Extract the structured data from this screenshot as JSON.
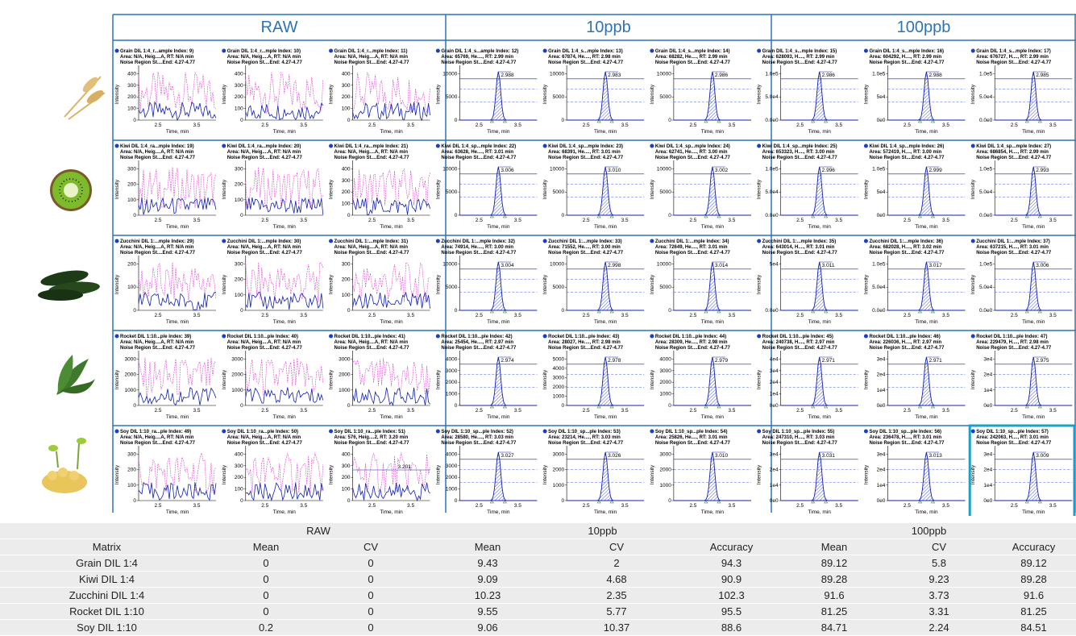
{
  "figure": {
    "groups": [
      "RAW",
      "10ppb",
      "100ppb"
    ],
    "x_label": "Time, min",
    "y_label": "Intensity",
    "xticks": [
      "2.5",
      "3.5"
    ],
    "rows": [
      [
        {
          "lines": [
            "Grain DIL 1:4_r...ample Index: 9)",
            "Area: N/A, Heig....A, RT: N/A min",
            "Noise Region St....End: 4.27-4.77"
          ],
          "yticks": [
            "0",
            "100",
            "200",
            "300",
            "400"
          ]
        },
        {
          "lines": [
            "Grain DIL 1:4_r...mple Index: 10)",
            "Area: N/A, Heig....A, RT: N/A min",
            "Noise Region St....End: 4.27-4.77"
          ],
          "yticks": [
            "0",
            "100",
            "200",
            "300",
            "400"
          ]
        },
        {
          "lines": [
            "Grain DIL 1:4_r...mple Index: 11)",
            "Area: N/A, Heig....A, RT: N/A min",
            "Noise Region St....End: 4.27-4.77"
          ],
          "yticks": [
            "0",
            "100",
            "200",
            "300",
            "400"
          ]
        },
        {
          "lines": [
            "Grain DIL 1:4_s...ample Index: 12)",
            "Area: 65769, He...., RT: 2.99 min",
            "Noise Region St....End: 4.27-4.77"
          ],
          "yticks": [
            "0",
            "5000",
            "10000"
          ],
          "peak": "2.988"
        },
        {
          "lines": [
            "Grain DIL 1:4_s...mple Index: 13)",
            "Area: 67874, He...., RT: 2.98 min",
            "Noise Region St....End: 4.27-4.77"
          ],
          "yticks": [
            "0",
            "5000",
            "10000"
          ],
          "peak": "2.983"
        },
        {
          "lines": [
            "Grain DIL 1:4_s...mple Index: 14)",
            "Area: 68282, He...., RT: 2.99 min",
            "Noise Region St....End: 4.27-4.77"
          ],
          "yticks": [
            "0",
            "5000",
            "10000"
          ],
          "peak": "2.986"
        },
        {
          "lines": [
            "Grain DIL 1:4_s...mple Index: 15)",
            "Area: 628093, H...., RT: 2.99 min",
            "Noise Region St....End: 4.27-4.77"
          ],
          "yticks": [
            "0.0e0",
            "5.0e4",
            "1.0e5"
          ],
          "peak": "2.986"
        },
        {
          "lines": [
            "Grain DIL 1:4_s...mple Index: 16)",
            "Area: 604292, H...., RT: 2.99 min",
            "Noise Region St....End: 4.27-4.77"
          ],
          "yticks": [
            "0e0",
            "5e4",
            "1.0e5"
          ],
          "peak": "2.988"
        },
        {
          "lines": [
            "Grain DIL 1:4_s...mple Index: 17)",
            "Area: 676727, H...., RT: 2.99 min",
            "Noise Region St....End: 4.27-4.77"
          ],
          "yticks": [
            "0.0e0",
            "5.0e4",
            "1.0e5"
          ],
          "peak": "2.985"
        }
      ],
      [
        {
          "lines": [
            "Kiwi DIL 1:4_ra...mple Index: 19)",
            "Area: N/A, Heig....A, RT: N/A min",
            "Noise Region St....End: 4.27-4.77"
          ],
          "yticks": [
            "0",
            "100",
            "200",
            "300"
          ]
        },
        {
          "lines": [
            "Kiwi DIL 1:4_ra...mple Index: 20)",
            "Area: N/A, Heig....A, RT: N/A min",
            "Noise Region St....End: 4.27-4.77"
          ],
          "yticks": [
            "0",
            "100",
            "200",
            "300"
          ]
        },
        {
          "lines": [
            "Kiwi DIL 1:4_ra...mple Index: 21)",
            "Area: N/A, Heig....A, RT: N/A min",
            "Noise Region St....End: 4.27-4.77"
          ],
          "yticks": [
            "0",
            "100",
            "200",
            "300",
            "400"
          ]
        },
        {
          "lines": [
            "Kiwi DIL 1:4_sp...mple Index: 22)",
            "Area: 63628, He...., RT: 3.01 min",
            "Noise Region St....End: 4.27-4.77"
          ],
          "yticks": [
            "0",
            "5000",
            "10000"
          ],
          "peak": "3.006"
        },
        {
          "lines": [
            "Kiwi DIL 1:4_sp...mple Index: 23)",
            "Area: 68391, He...., RT: 3.01 min",
            "Noise Region St....End: 4.27-4.77"
          ],
          "yticks": [
            "0",
            "5000",
            "10000"
          ],
          "peak": "3.010"
        },
        {
          "lines": [
            "Kiwi DIL 1:4_sp...mple Index: 24)",
            "Area: 62741, He...., RT: 3.00 min",
            "Noise Region St....End: 4.27-4.77"
          ],
          "yticks": [
            "0",
            "5000",
            "10000"
          ],
          "peak": "3.002"
        },
        {
          "lines": [
            "Kiwi DIL 1:4_sp...mple Index: 25)",
            "Area: 653323, H...., RT: 3.00 min",
            "Noise Region St....End: 4.27-4.77"
          ],
          "yticks": [
            "0.0e0",
            "5.0e4",
            "1.0e5"
          ],
          "peak": "2.996"
        },
        {
          "lines": [
            "Kiwi DIL 1:4_sp...mple Index: 26)",
            "Area: 572419, H...., RT: 3.00 min",
            "Noise Region St....End: 4.27-4.77"
          ],
          "yticks": [
            "0e0",
            "5e4",
            "1.0e5"
          ],
          "peak": "2.999"
        },
        {
          "lines": [
            "Kiwi DIL 1:4_sp...mple Index: 27)",
            "Area: 686854, H...., RT: 2.99 min",
            "Noise Region St....End: 4.27-4.77"
          ],
          "yticks": [
            "0.0e0",
            "5.0e4",
            "1.0e5"
          ],
          "peak": "2.993"
        }
      ],
      [
        {
          "lines": [
            "Zucchini DIL 1:...mple Index: 29)",
            "Area: N/A, Heig....A, RT: N/A min",
            "Noise Region St....End: 4.27-4.77"
          ],
          "yticks": [
            "0",
            "100",
            "200"
          ]
        },
        {
          "lines": [
            "Zucchini DIL 1:...mple Index: 30)",
            "Area: N/A, Heig....A, RT: N/A min",
            "Noise Region St....End: 4.27-4.77"
          ],
          "yticks": [
            "0",
            "100",
            "200",
            "300"
          ]
        },
        {
          "lines": [
            "Zucchini DIL 1:...mple Index: 31)",
            "Area: N/A, Heig....A, RT: N/A min",
            "Noise Region St....End: 4.27-4.77"
          ],
          "yticks": [
            "0",
            "100",
            "200",
            "300"
          ]
        },
        {
          "lines": [
            "Zucchini DIL 1:...mple Index: 32)",
            "Area: 74914, He...., RT: 3.00 min",
            "Noise Region St....End: 4.27-4.77"
          ],
          "yticks": [
            "0",
            "5000",
            "10000"
          ],
          "peak": "3.004"
        },
        {
          "lines": [
            "Zucchini DIL 1:...mple Index: 33)",
            "Area: 71552, He...., RT: 3.00 min",
            "Noise Region St....End: 4.27-4.77"
          ],
          "yticks": [
            "0",
            "5000",
            "10000"
          ],
          "peak": "2.998"
        },
        {
          "lines": [
            "Zucchini DIL 1:...mple Index: 34)",
            "Area: 72649, He...., RT: 3.01 min",
            "Noise Region St....End: 4.27-4.77"
          ],
          "yticks": [
            "0",
            "5000",
            "10000"
          ],
          "peak": "3.014"
        },
        {
          "lines": [
            "Zucchini DIL 1:...mple Index: 35)",
            "Area: 643014, H...., RT: 3.01 min",
            "Noise Region St....End: 4.27-4.77"
          ],
          "yticks": [
            "0.0e0",
            "5e4"
          ],
          "peak": "3.011"
        },
        {
          "lines": [
            "Zucchini DIL 1:...mple Index: 36)",
            "Area: 682028, H...., RT: 3.02 min",
            "Noise Region St....End: 4.27-4.77"
          ],
          "yticks": [
            "0.0e0",
            "5.0e4",
            "1.0e5"
          ],
          "peak": "3.017"
        },
        {
          "lines": [
            "Zucchini DIL 1:...mple Index: 37)",
            "Area: 637215, H...., RT: 3.01 min",
            "Noise Region St....End: 4.27-4.77"
          ],
          "yticks": [
            "0.0e0",
            "5.0e4",
            "1.0e5"
          ],
          "peak": "3.006"
        }
      ],
      [
        {
          "lines": [
            "Rocket DIL 1:10...ple Index: 39)",
            "Area: N/A, Heig....A, RT: N/A min",
            "Noise Region St....End: 4.27-4.77"
          ],
          "yticks": [
            "0",
            "1000",
            "2000",
            "3000"
          ]
        },
        {
          "lines": [
            "Rocket DIL 1:10...ple Index: 40)",
            "Area: N/A, Heig....A, RT: N/A min",
            "Noise Region St....End: 4.27-4.77"
          ],
          "yticks": [
            "0",
            "1000",
            "2000",
            "3000"
          ]
        },
        {
          "lines": [
            "Rocket DIL 1:10...ple Index: 41)",
            "Area: N/A, Heig....A, RT: N/A min",
            "Noise Region St....End: 4.27-4.77"
          ],
          "yticks": [
            "0",
            "1000",
            "2000",
            "3000"
          ]
        },
        {
          "lines": [
            "Rocket DIL 1:10...ple Index: 42)",
            "Area: 25454, He...., RT: 2.97 min",
            "Noise Region St....End: 4.27-4.77"
          ],
          "yticks": [
            "0",
            "1000",
            "2000",
            "3000",
            "4000"
          ],
          "peak": "2.974"
        },
        {
          "lines": [
            "Rocket DIL 1:10...ple Index: 43)",
            "Area: 28027, He...., RT: 2.98 min",
            "Noise Region St....End: 4.27-4.77"
          ],
          "yticks": [
            "0",
            "1000",
            "2000",
            "3000",
            "4000",
            "5000"
          ],
          "peak": "2.978"
        },
        {
          "lines": [
            "Rocket DIL 1:10...ple Index: 44)",
            "Area: 28309, He...., RT: 2.98 min",
            "Noise Region St....End: 4.27-4.77"
          ],
          "yticks": [
            "0",
            "1000",
            "2000",
            "3000",
            "4000"
          ],
          "peak": "2.979"
        },
        {
          "lines": [
            "Rocket DIL 1:10...ple Index: 45)",
            "Area: 240738, H...., RT: 2.97 min",
            "Noise Region St....End: 4.27-4.77"
          ],
          "yticks": [
            "0e0",
            "1e4",
            "2e4",
            "3e4",
            "4e4"
          ],
          "peak": "2.971"
        },
        {
          "lines": [
            "Rocket DIL 1:10...ple Index: 46)",
            "Area: 226036, H...., RT: 2.97 min",
            "Noise Region St....End: 4.27-4.77"
          ],
          "yticks": [
            "0e0",
            "1e4",
            "2e4",
            "3e4"
          ],
          "peak": "2.971"
        },
        {
          "lines": [
            "Rocket DIL 1:10...ple Index: 47)",
            "Area: 229479, H...., RT: 2.98 min",
            "Noise Region St....End: 4.27-4.77"
          ],
          "yticks": [
            "0e0",
            "1e4",
            "2e4",
            "3e4"
          ],
          "peak": "2.975"
        }
      ],
      [
        {
          "lines": [
            "Soy DIL 1:10_ra...ple Index: 49)",
            "Area: N/A, Heig....A, RT: N/A min",
            "Noise Region St....End: 4.27-4.77"
          ],
          "yticks": [
            "0",
            "100",
            "200",
            "300"
          ]
        },
        {
          "lines": [
            "Soy DIL 1:10_ra...ple Index: 50)",
            "Area: N/A, Heig....A, RT: N/A min",
            "Noise Region St....End: 4.27-4.77"
          ],
          "yticks": [
            "0",
            "100",
            "200",
            "300",
            "400"
          ]
        },
        {
          "lines": [
            "Soy DIL 1:10_ra...ple Index: 51)",
            "Area: 576, Heig....2, RT: 3.20 min",
            "Noise Region St....End: 4.27-4.77"
          ],
          "yticks": [
            "0",
            "100",
            "200",
            "300",
            "400"
          ],
          "peak": "3.201"
        },
        {
          "lines": [
            "Soy DIL 1:10_sp...ple Index: 52)",
            "Area: 28580, He...., RT: 3.03 min",
            "Noise Region St....End: 4.27-4.77"
          ],
          "yticks": [
            "0",
            "1000",
            "2000",
            "3000",
            "4000"
          ],
          "peak": "3.027"
        },
        {
          "lines": [
            "Soy DIL 1:10_sp...ple Index: 53)",
            "Area: 23214, He...., RT: 3.03 min",
            "Noise Region St....End: 4.27-4.77"
          ],
          "yticks": [
            "0",
            "1000",
            "2000",
            "3000"
          ],
          "peak": "3.026"
        },
        {
          "lines": [
            "Soy DIL 1:10_sp...ple Index: 54)",
            "Area: 25826, He...., RT: 3.01 min",
            "Noise Region St....End: 4.27-4.77"
          ],
          "yticks": [
            "0",
            "1000",
            "2000",
            "3000"
          ],
          "peak": "3.010"
        },
        {
          "lines": [
            "Soy DIL 1:10_sp...ple Index: 55)",
            "Area: 247310, H...., RT: 3.03 min",
            "Noise Region St....End: 4.27-4.77"
          ],
          "yticks": [
            "0e0",
            "1e4",
            "2e4",
            "3e4"
          ],
          "peak": "3.031"
        },
        {
          "lines": [
            "Soy DIL 1:10_sp...ple Index: 56)",
            "Area: 236478, H...., RT: 3.01 min",
            "Noise Region St....End: 4.27-4.77"
          ],
          "yticks": [
            "0e0",
            "1e4",
            "2e4",
            "3e4"
          ],
          "peak": "3.013"
        },
        {
          "lines": [
            "Soy DIL 1:10_sp...ple Index: 57)",
            "Area: 242063, H...., RT: 3.01 min",
            "Noise Region St....End: 4.27-4.77"
          ],
          "yticks": [
            "0e0",
            "1e4",
            "2e4",
            "3e4"
          ],
          "peak": "3.009"
        }
      ]
    ]
  },
  "table": {
    "groups": [
      "RAW",
      "10ppb",
      "100ppb"
    ],
    "columns": [
      "Matrix",
      "Mean",
      "CV",
      "Mean",
      "CV",
      "Accuracy",
      "Mean",
      "CV",
      "Accuracy"
    ],
    "rows": [
      [
        "Grain DIL 1:4",
        0,
        0,
        9.43,
        2,
        94.3,
        89.12,
        5.8,
        89.12
      ],
      [
        "Kiwi DIL 1:4",
        0,
        0,
        9.09,
        4.68,
        90.9,
        89.28,
        9.23,
        89.28
      ],
      [
        "Zucchini DIL 1:4",
        0,
        0,
        10.23,
        2.35,
        102.3,
        91.6,
        3.73,
        91.6
      ],
      [
        "Rocket DIL 1:10",
        0,
        0,
        9.55,
        5.77,
        95.5,
        81.25,
        3.31,
        81.25
      ],
      [
        "Soy DIL 1:10",
        0.2,
        0,
        9.06,
        10.37,
        88.6,
        84.71,
        2.24,
        84.51
      ]
    ]
  }
}
